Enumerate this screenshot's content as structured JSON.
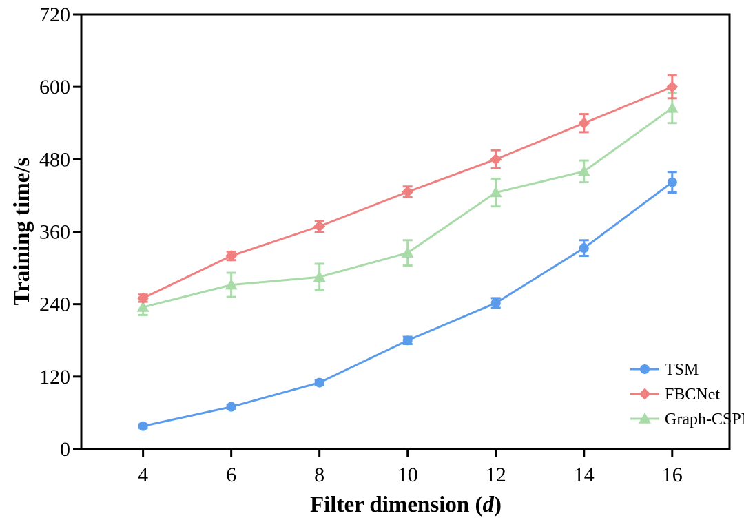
{
  "chart_data": {
    "type": "line",
    "title": "",
    "xlabel": "Filter dimension (",
    "xlabel_var": "d",
    "xlabel_suffix": ")",
    "ylabel": "Training time/s",
    "x": [
      4,
      6,
      8,
      10,
      12,
      14,
      16
    ],
    "xticks": [
      "4",
      "6",
      "8",
      "10",
      "12",
      "14",
      "16"
    ],
    "xlim": [
      2.6,
      17.3
    ],
    "ylim": [
      0,
      720
    ],
    "yticks": [
      "0",
      "120",
      "240",
      "360",
      "480",
      "600",
      "720"
    ],
    "grid": false,
    "legend_position": "bottom-right",
    "series": [
      {
        "name": "TSM",
        "marker": "circle",
        "color": "#5b9bec",
        "values": [
          38,
          70,
          110,
          180,
          242,
          333,
          442
        ],
        "errors": [
          3,
          3,
          4,
          6,
          8,
          13,
          17
        ]
      },
      {
        "name": "FBCNet",
        "marker": "diamond",
        "color": "#f08080",
        "values": [
          250,
          320,
          369,
          426,
          480,
          540,
          600
        ],
        "errors": [
          6,
          7,
          9,
          9,
          15,
          15,
          19
        ]
      },
      {
        "name": "Graph-CSPNet",
        "marker": "triangle",
        "color": "#a8dba8",
        "values": [
          235,
          272,
          285,
          325,
          425,
          460,
          565
        ],
        "errors": [
          13,
          20,
          22,
          21,
          23,
          18,
          25
        ]
      }
    ]
  }
}
